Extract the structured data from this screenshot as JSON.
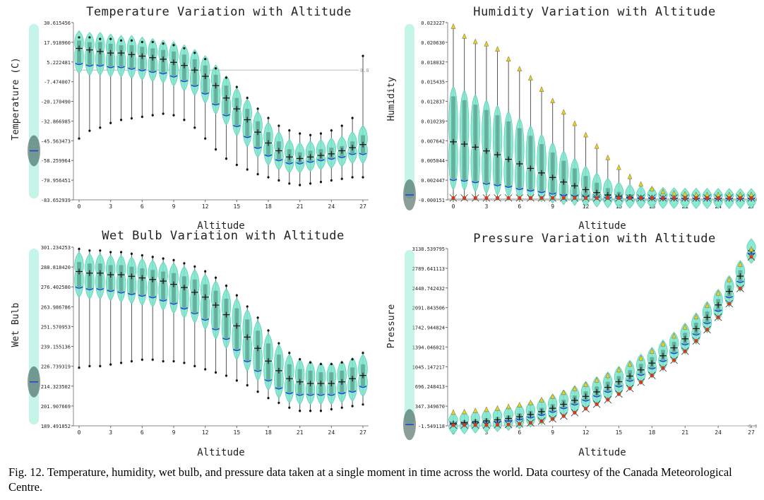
{
  "caption": "Fig. 12.   Temperature, humidity, wet bulb, and pressure data taken at a single moment in time across the world. Data courtesy of the Canada Meteorological Centre.",
  "colors": {
    "violin_fill": "#7fe6cf",
    "violin_edge": "#3fbf9f",
    "box_dark": "#2e4f45",
    "whisker": "#555555",
    "mean": "#1f3fd6",
    "marker_dark": "#111111",
    "marker_yellow": "#e8d21a",
    "marker_red": "#d23a1a",
    "ref_line": "#bbbbbb"
  },
  "chart_data": [
    {
      "type": "violin",
      "title": "Temperature Variation with Altitude",
      "xlabel": "Altitude",
      "ylabel": "Temperature (C)",
      "xlim": [
        0,
        27
      ],
      "ylim": [
        -83.652939,
        30.615456
      ],
      "x_ticks": [
        "0",
        "3",
        "6",
        "9",
        "12",
        "15",
        "18",
        "21",
        "24",
        "27"
      ],
      "y_ticks": [
        "30.615456",
        "17.918960",
        "5.222481",
        "-7.474007",
        "-20.170490",
        "-32.866985",
        "-45.563473",
        "-58.259964",
        "-70.956451",
        "-83.652939"
      ],
      "ref_line": {
        "y": 0.0,
        "label": "0.0"
      },
      "summary": {
        "center": -52,
        "spread": 10
      },
      "x": [
        0,
        1,
        2,
        3,
        4,
        5,
        6,
        7,
        8,
        9,
        10,
        11,
        12,
        13,
        14,
        15,
        16,
        17,
        18,
        19,
        20,
        21,
        22,
        23,
        24,
        25,
        26,
        27
      ],
      "median": [
        14,
        13,
        12,
        11,
        11,
        10,
        9,
        8,
        7,
        5,
        3,
        0,
        -4,
        -10,
        -18,
        -25,
        -32,
        -40,
        -47,
        -52,
        -56,
        -57,
        -56,
        -55,
        -54,
        -52,
        -50,
        -48
      ],
      "q1": [
        4,
        3,
        3,
        2,
        2,
        1,
        0,
        -1,
        -2,
        -4,
        -7,
        -10,
        -15,
        -22,
        -29,
        -36,
        -43,
        -50,
        -55,
        -58,
        -60,
        -60,
        -59,
        -58,
        -57,
        -56,
        -54,
        -54
      ],
      "q3": [
        19,
        18,
        18,
        17,
        16,
        16,
        15,
        14,
        13,
        12,
        10,
        7,
        3,
        -3,
        -10,
        -18,
        -25,
        -33,
        -40,
        -46,
        -51,
        -53,
        -52,
        -51,
        -50,
        -49,
        -46,
        -42
      ],
      "min": [
        -45,
        -40,
        -38,
        -35,
        -33,
        -32,
        -31,
        -30,
        -29,
        -30,
        -33,
        -38,
        -45,
        -52,
        -58,
        -62,
        -65,
        -68,
        -70,
        -72,
        -74,
        -75,
        -74,
        -73,
        -72,
        -71,
        -70,
        -70
      ],
      "max": [
        22,
        22,
        21,
        21,
        20,
        20,
        19,
        19,
        18,
        17,
        15,
        12,
        8,
        2,
        -4,
        -10,
        -17,
        -24,
        -30,
        -35,
        -38,
        -40,
        -41,
        -40,
        -38,
        -35,
        -30,
        10
      ]
    },
    {
      "type": "violin",
      "title": "Humidity Variation with Altitude",
      "xlabel": "Altitude",
      "ylabel": "Humidity",
      "xlim": [
        0,
        27
      ],
      "ylim": [
        -0.000151,
        0.023227
      ],
      "x_ticks": [
        "0",
        "3",
        "6",
        "9",
        "12",
        "15",
        "18",
        "21",
        "24",
        "27"
      ],
      "y_ticks": [
        "0.023227",
        "0.020630",
        "0.018032",
        "0.015435",
        "0.012837",
        "0.010239",
        "0.007642",
        "0.005044",
        "0.002447",
        "-0.000151"
      ],
      "ref_line": {
        "y": 0.0,
        "label": "0.0"
      },
      "summary": {
        "center": 0.0005,
        "spread": 0.001
      },
      "x": [
        0,
        1,
        2,
        3,
        4,
        5,
        6,
        7,
        8,
        9,
        10,
        11,
        12,
        13,
        14,
        15,
        16,
        17,
        18,
        19,
        20,
        21,
        22,
        23,
        24,
        25,
        26,
        27
      ],
      "median": [
        0.0075,
        0.0072,
        0.0068,
        0.0063,
        0.0058,
        0.0052,
        0.0046,
        0.004,
        0.0034,
        0.0028,
        0.0022,
        0.0017,
        0.0012,
        0.0008,
        0.0005,
        0.0003,
        0.0002,
        0.0001,
        0.0001,
        5e-05,
        3e-05,
        2e-05,
        2e-05,
        1e-05,
        1e-05,
        1e-05,
        1e-05,
        1e-05
      ],
      "q1": [
        0.0025,
        0.0024,
        0.0022,
        0.002,
        0.0018,
        0.0016,
        0.0013,
        0.0011,
        0.0009,
        0.0007,
        0.0005,
        0.0004,
        0.0003,
        0.0002,
        0.0001,
        7e-05,
        5e-05,
        3e-05,
        2e-05,
        1e-05,
        1e-05,
        0.0,
        0.0,
        0.0,
        0.0,
        0.0,
        0.0,
        0.0
      ],
      "q3": [
        0.0135,
        0.013,
        0.0124,
        0.0117,
        0.011,
        0.0102,
        0.0093,
        0.0083,
        0.0072,
        0.0061,
        0.005,
        0.004,
        0.003,
        0.0021,
        0.0014,
        0.0009,
        0.0006,
        0.0004,
        0.0003,
        0.0002,
        0.00015,
        0.0001,
        0.0001,
        8e-05,
        6e-05,
        5e-05,
        4e-05,
        4e-05
      ],
      "min": [
        0.0,
        0.0,
        0.0,
        0.0,
        0.0,
        0.0,
        0.0,
        0.0,
        0.0,
        0.0,
        0.0,
        0.0,
        0.0,
        0.0,
        0.0,
        0.0,
        0.0,
        0.0,
        0.0,
        0.0,
        0.0,
        0.0,
        0.0,
        0.0,
        0.0,
        0.0,
        0.0,
        0.0
      ],
      "max": [
        0.0228,
        0.0215,
        0.0208,
        0.0205,
        0.0198,
        0.0185,
        0.0172,
        0.016,
        0.0145,
        0.013,
        0.0115,
        0.01,
        0.0085,
        0.007,
        0.0055,
        0.0042,
        0.003,
        0.002,
        0.0014,
        0.001,
        0.0008,
        0.0007,
        0.0006,
        0.0006,
        0.0006,
        0.0006,
        0.0006,
        0.0006
      ]
    },
    {
      "type": "violin",
      "title": "Wet Bulb Variation with Altitude",
      "xlabel": "Altitude",
      "ylabel": "Wet Bulb",
      "xlim": [
        0,
        27
      ],
      "ylim": [
        189.491852,
        301.234253
      ],
      "x_ticks": [
        "0",
        "3",
        "6",
        "9",
        "12",
        "15",
        "18",
        "21",
        "24",
        "27"
      ],
      "y_ticks": [
        "301.234253",
        "288.818420",
        "276.402580",
        "263.986786",
        "251.570953",
        "239.155136",
        "226.739319",
        "214.323502",
        "201.907669",
        "189.491852"
      ],
      "summary": {
        "center": 217,
        "spread": 10
      },
      "x": [
        0,
        1,
        2,
        3,
        4,
        5,
        6,
        7,
        8,
        9,
        10,
        11,
        12,
        13,
        14,
        15,
        16,
        17,
        18,
        19,
        20,
        21,
        22,
        23,
        24,
        25,
        26,
        27
      ],
      "median": [
        286,
        285,
        285,
        284,
        284,
        283,
        282,
        281,
        280,
        278,
        276,
        273,
        270,
        265,
        259,
        252,
        245,
        238,
        230,
        224,
        219,
        217,
        216,
        216,
        216,
        217,
        219,
        221
      ],
      "q1": [
        276,
        275,
        275,
        274,
        273,
        272,
        271,
        270,
        268,
        266,
        263,
        260,
        256,
        250,
        244,
        237,
        230,
        224,
        218,
        213,
        210,
        209,
        209,
        209,
        209,
        210,
        211,
        214
      ],
      "q3": [
        292,
        291,
        291,
        290,
        290,
        289,
        288,
        287,
        286,
        285,
        283,
        281,
        278,
        274,
        269,
        263,
        256,
        249,
        241,
        234,
        228,
        225,
        224,
        223,
        223,
        224,
        226,
        228
      ],
      "min": [
        225,
        226,
        226,
        227,
        228,
        229,
        230,
        230,
        229,
        229,
        228,
        226,
        224,
        222,
        220,
        217,
        214,
        210,
        206,
        203,
        200,
        198,
        198,
        198,
        199,
        200,
        201,
        202
      ],
      "max": [
        301,
        300,
        300,
        299,
        299,
        298,
        297,
        296,
        295,
        294,
        292,
        290,
        287,
        283,
        278,
        272,
        265,
        258,
        250,
        242,
        236,
        232,
        230,
        229,
        229,
        230,
        232,
        236
      ]
    },
    {
      "type": "violin",
      "title": "Pressure Variation with Altitude",
      "xlabel": "Altitude",
      "ylabel": "Pressure",
      "xlim": [
        0,
        27
      ],
      "ylim": [
        -1.549118,
        3138.539795
      ],
      "x_ticks": [
        "0",
        "3",
        "6",
        "9",
        "12",
        "15",
        "18",
        "21",
        "24",
        "27"
      ],
      "y_ticks": [
        "3138.539795",
        "2789.641113",
        "2440.742432",
        "2091.843506",
        "1742.944824",
        "1394.046021",
        "1045.147217",
        "696.248413",
        "347.349670",
        "-1.549118"
      ],
      "ref_line": {
        "y": 0.0,
        "label": "0.0"
      },
      "summary": {
        "center": 20,
        "spread": 40
      },
      "x": [
        0,
        1,
        2,
        3,
        4,
        5,
        6,
        7,
        8,
        9,
        10,
        11,
        12,
        13,
        14,
        15,
        16,
        17,
        18,
        19,
        20,
        21,
        22,
        23,
        24,
        25,
        26,
        27
      ],
      "median": [
        40,
        55,
        70,
        85,
        105,
        130,
        160,
        200,
        250,
        310,
        380,
        450,
        520,
        600,
        680,
        780,
        880,
        990,
        1110,
        1240,
        1380,
        1540,
        1720,
        1920,
        2140,
        2380,
        2650,
        3100
      ],
      "q1": [
        20,
        30,
        45,
        55,
        70,
        90,
        115,
        150,
        195,
        250,
        315,
        380,
        450,
        525,
        605,
        700,
        800,
        905,
        1020,
        1150,
        1290,
        1445,
        1620,
        1820,
        2040,
        2280,
        2550,
        3050
      ],
      "q3": [
        70,
        90,
        110,
        130,
        155,
        185,
        220,
        265,
        320,
        385,
        460,
        535,
        610,
        695,
        780,
        880,
        985,
        1095,
        1215,
        1345,
        1485,
        1645,
        1825,
        2025,
        2245,
        2485,
        2755,
        3150
      ],
      "min": [
        -1,
        0,
        0,
        0,
        5,
        10,
        20,
        40,
        70,
        110,
        160,
        220,
        290,
        370,
        450,
        550,
        650,
        760,
        880,
        1010,
        1150,
        1310,
        1490,
        1690,
        1910,
        2150,
        2420,
        2980
      ],
      "max": [
        250,
        260,
        280,
        300,
        320,
        350,
        380,
        420,
        470,
        530,
        600,
        670,
        740,
        820,
        900,
        1000,
        1100,
        1210,
        1330,
        1460,
        1600,
        1760,
        1940,
        2140,
        2360,
        2600,
        2870,
        3180
      ]
    }
  ]
}
